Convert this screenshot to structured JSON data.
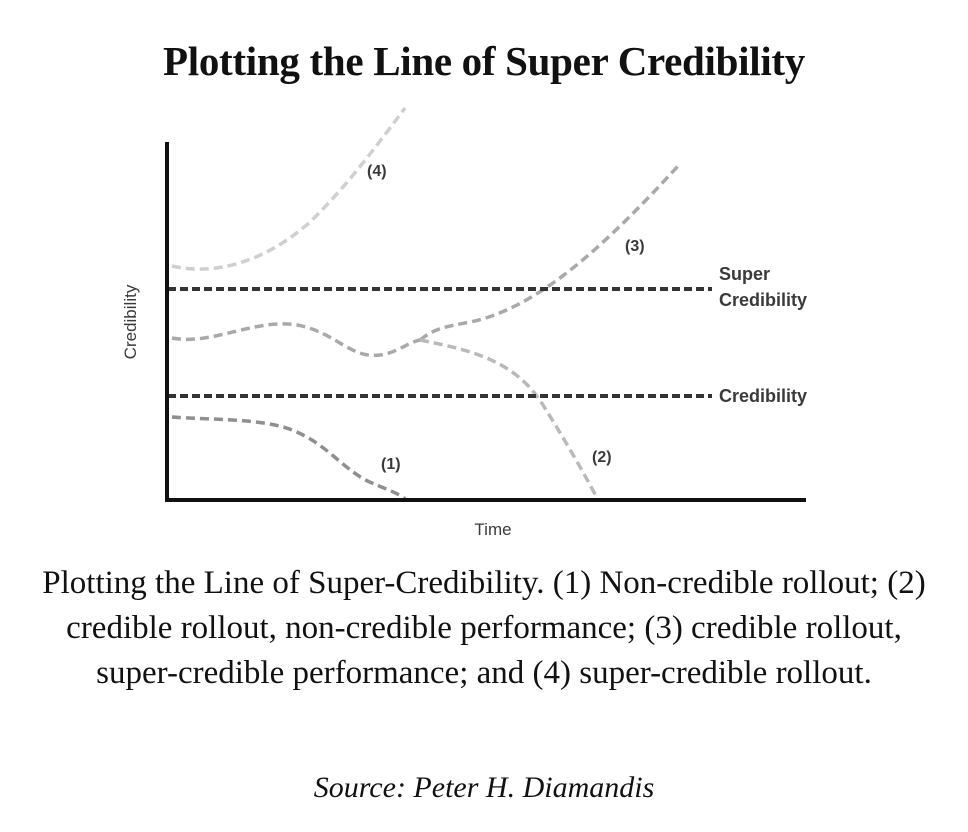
{
  "title": "Plotting the Line of Super Credibility",
  "diagram": {
    "y_axis_label": "Credibility",
    "x_axis_label": "Time",
    "threshold_lines": [
      {
        "id": "super",
        "label_line1": "Super",
        "label_line2": "Credibility"
      },
      {
        "id": "credibility",
        "label": "Credibility"
      }
    ],
    "curve_labels": [
      "(1)",
      "(2)",
      "(3)",
      "(4)"
    ],
    "colors": {
      "axes": "#111111",
      "threshold": "#333333",
      "curve_light": "#c9c9c9",
      "curve_mid": "#9a9a9a"
    }
  },
  "caption": "Plotting the Line of Super-Credibility. (1) Non-credible rollout; (2) credible rollout, non-credible performance; (3) credible rollout, super-credible performance; and (4) super-credible rollout.",
  "source": "Source: Peter H. Diamandis"
}
